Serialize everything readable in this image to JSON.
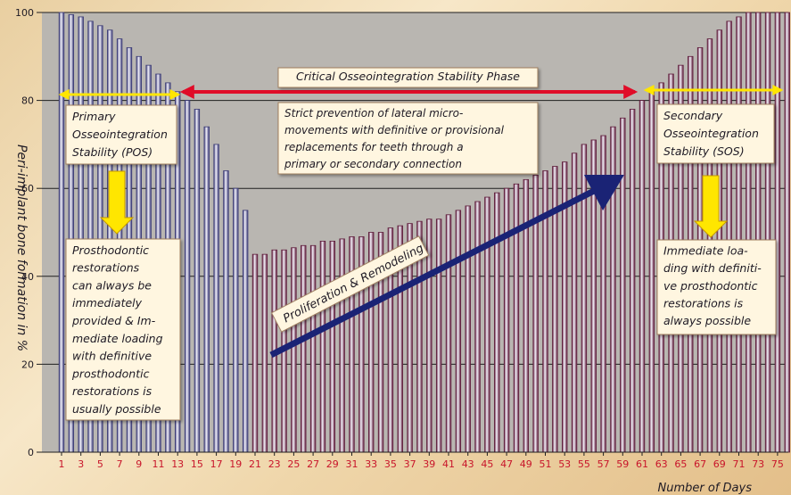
{
  "chart_data": {
    "type": "bar",
    "ylabel": "Peri-implant bone formation in %",
    "xlabel": "Number of Days",
    "ylim": [
      0,
      100
    ],
    "yticks": [
      0,
      20,
      40,
      60,
      80,
      100
    ],
    "grid": true,
    "x_start": 1,
    "x_end": 75,
    "xtick_labels": [
      "1",
      "3",
      "5",
      "7",
      "9",
      "11",
      "13",
      "15",
      "17",
      "19",
      "21",
      "23",
      "25",
      "27",
      "29",
      "31",
      "33",
      "35",
      "37",
      "39",
      "41",
      "43",
      "45",
      "47",
      "49",
      "51",
      "53",
      "55",
      "57",
      "59",
      "61",
      "63",
      "65",
      "67",
      "69",
      "71",
      "73",
      "75"
    ],
    "series": [
      {
        "values": [
          100,
          99.5,
          99,
          98,
          97,
          96,
          94,
          92,
          90,
          88,
          86,
          84,
          82,
          80,
          78,
          74,
          70,
          64,
          60,
          55
        ]
      },
      {
        "values": [
          45,
          45,
          46,
          46,
          46.5,
          47,
          47,
          48,
          48,
          48.5,
          49,
          49,
          50,
          50,
          51,
          51.5,
          52,
          52.5,
          53,
          53,
          54,
          55,
          56,
          57,
          58,
          59,
          60,
          61,
          62,
          63,
          64,
          65,
          66,
          68,
          70,
          71,
          72,
          74,
          76,
          78,
          80,
          82,
          84,
          86,
          88,
          90,
          92,
          94,
          96,
          98,
          99,
          100,
          100,
          100,
          100,
          100,
          100
        ]
      }
    ],
    "colors": {
      "phase1": "#3b3b76",
      "phase2": "#5e1b3a",
      "bar_light": "#f4f2fb",
      "plot_bg": "#b9b6b1",
      "red_arrow": "#e00c28",
      "yellow": "#ffe600",
      "blue_arrow": "#1a2375"
    }
  },
  "annotations": {
    "phase_title": "Critical Osseointegration Stability Phase",
    "phase_desc": [
      "Strict prevention of lateral micro-",
      "movements with definitive or provisional",
      "replacements for teeth through a",
      "primary or secondary connection"
    ],
    "pos": [
      "Primary",
      "Osseointegration",
      "Stability (POS)"
    ],
    "pos_detail": [
      "Prosthodontic",
      "restorations",
      "can always be",
      "immediately",
      "provided & Im-",
      "mediate loading",
      "with definitive",
      "prosthodontic",
      "restorations is",
      "usually possible"
    ],
    "sos": [
      "Secondary",
      "Osseointegration",
      "Stability (SOS)"
    ],
    "sos_detail": [
      "Immediate loa-",
      "ding with definiti-",
      "ve prosthodontic",
      "restorations is",
      "always possible"
    ],
    "prolif": "Proliferation & Remodeling"
  }
}
